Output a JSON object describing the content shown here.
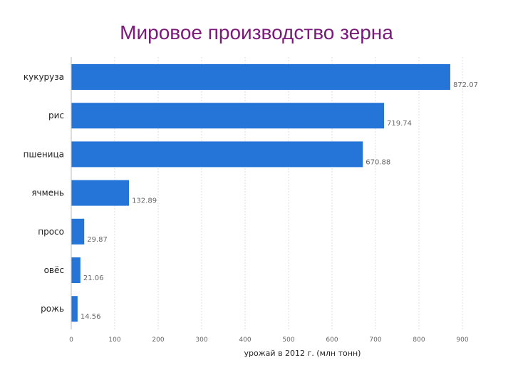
{
  "chart_data": {
    "type": "bar",
    "orientation": "horizontal",
    "title": "Мировое производство зерна",
    "xlabel": "урожай в 2012 г. (млн тонн)",
    "ylabel": "",
    "categories": [
      "кукуруза",
      "рис",
      "пшеница",
      "ячмень",
      "просо",
      "овёс",
      "рожь"
    ],
    "values": [
      872.07,
      719.74,
      670.88,
      132.89,
      29.87,
      21.06,
      14.56
    ],
    "value_labels": [
      "872.07",
      "719.74",
      "670.88",
      "132.89",
      "29.87",
      "21.06",
      "14.56"
    ],
    "xlim": [
      0,
      900
    ],
    "xticks": [
      0,
      100,
      200,
      300,
      400,
      500,
      600,
      700,
      800,
      900
    ],
    "grid": true,
    "bar_color": "#2575d9"
  }
}
